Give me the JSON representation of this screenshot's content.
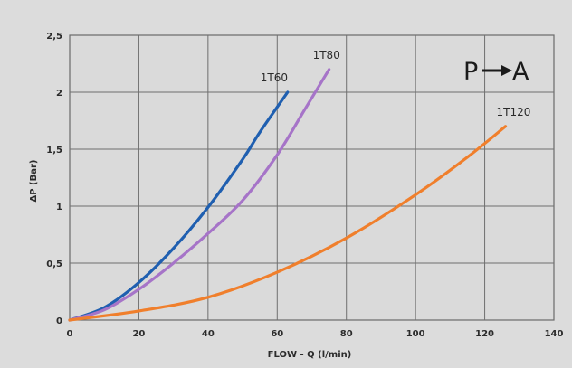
{
  "chart_data": {
    "type": "line",
    "xlabel": "FLOW - Q (l/min)",
    "ylabel": "ΔP (Bar)",
    "xlim": [
      0,
      140
    ],
    "ylim": [
      0,
      2.5
    ],
    "x_ticks": [
      "0",
      "20",
      "40",
      "60",
      "80",
      "100",
      "120",
      "140"
    ],
    "y_ticks": [
      "0",
      "0,5",
      "1",
      "1,5",
      "2",
      "2,5"
    ],
    "grid": true,
    "direction_label": {
      "from": "P",
      "to": "A"
    },
    "series": [
      {
        "name": "1T60",
        "color": "#1f5fb0",
        "points": [
          [
            0,
            0
          ],
          [
            10,
            0.11
          ],
          [
            20,
            0.33
          ],
          [
            30,
            0.63
          ],
          [
            40,
            0.99
          ],
          [
            50,
            1.41
          ],
          [
            55,
            1.65
          ],
          [
            63,
            2.0
          ]
        ]
      },
      {
        "name": "1T80",
        "color": "#a674c8",
        "points": [
          [
            0,
            0
          ],
          [
            10,
            0.09
          ],
          [
            20,
            0.27
          ],
          [
            30,
            0.5
          ],
          [
            40,
            0.76
          ],
          [
            50,
            1.05
          ],
          [
            60,
            1.45
          ],
          [
            68,
            1.85
          ],
          [
            75,
            2.2
          ]
        ]
      },
      {
        "name": "1T120",
        "color": "#f07f2c",
        "points": [
          [
            0,
            0
          ],
          [
            20,
            0.08
          ],
          [
            40,
            0.2
          ],
          [
            60,
            0.42
          ],
          [
            80,
            0.72
          ],
          [
            100,
            1.1
          ],
          [
            115,
            1.43
          ],
          [
            126,
            1.7
          ]
        ]
      }
    ]
  }
}
